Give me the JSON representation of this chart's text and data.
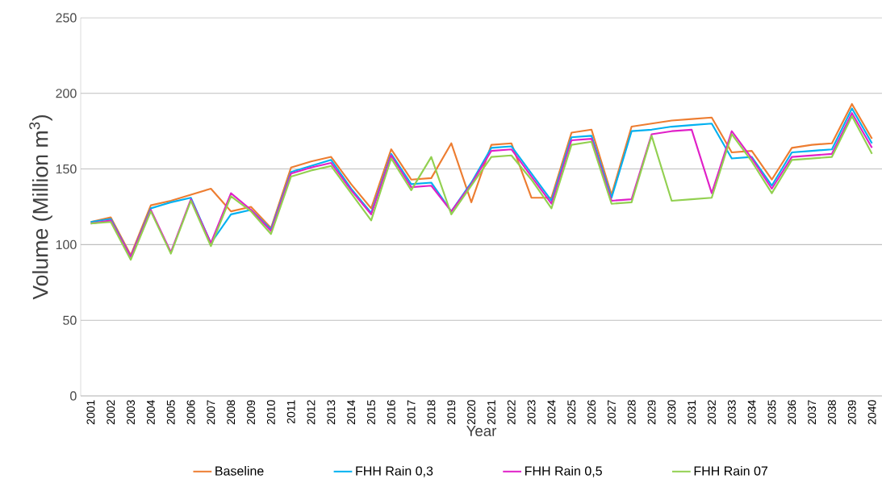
{
  "chart_data": {
    "type": "line",
    "xlabel": "Year",
    "ylabel": "Volume (Million m$^{3}$)",
    "categories": [
      "2001",
      "2002",
      "2003",
      "2004",
      "2005",
      "2006",
      "2007",
      "2008",
      "2009",
      "2010",
      "2011",
      "2012",
      "2013",
      "2014",
      "2015",
      "2016",
      "2017",
      "2018",
      "2019",
      "2020",
      "2021",
      "2022",
      "2023",
      "2024",
      "2025",
      "2026",
      "2027",
      "2028",
      "2029",
      "2030",
      "2031",
      "2032",
      "2033",
      "2034",
      "2035",
      "2036",
      "2037",
      "2038",
      "2039",
      "2040"
    ],
    "series": [
      {
        "name": "Baseline",
        "color": "#ed7d31",
        "values": [
          115,
          118,
          93,
          126,
          129,
          133,
          137,
          122,
          125,
          111,
          151,
          155,
          158,
          140,
          124,
          163,
          143,
          144,
          167,
          128,
          166,
          167,
          131,
          131,
          174,
          176,
          133,
          178,
          180,
          182,
          183,
          184,
          161,
          162,
          143,
          164,
          166,
          167,
          193,
          170
        ]
      },
      {
        "name": "FHH Rain 0,3",
        "color": "#00b0f0",
        "values": [
          115,
          117,
          92,
          124,
          128,
          131,
          101,
          120,
          123,
          110,
          148,
          152,
          156,
          137,
          121,
          160,
          140,
          141,
          122,
          141,
          164,
          165,
          147,
          129,
          171,
          172,
          131,
          175,
          176,
          178,
          179,
          180,
          157,
          158,
          139,
          161,
          162,
          163,
          190,
          167
        ]
      },
      {
        "name": "FHH Rain 0,5",
        "color": "#e020c8",
        "values": [
          114,
          116,
          92,
          123,
          95,
          130,
          101,
          134,
          123,
          109,
          147,
          151,
          154,
          136,
          120,
          159,
          138,
          139,
          122,
          140,
          162,
          163,
          145,
          127,
          169,
          170,
          129,
          130,
          173,
          175,
          176,
          134,
          175,
          157,
          137,
          158,
          159,
          160,
          187,
          164
        ]
      },
      {
        "name": "FHH Rain 07",
        "color": "#92d050",
        "values": [
          114,
          115,
          90,
          122,
          94,
          129,
          99,
          132,
          122,
          107,
          145,
          149,
          152,
          134,
          116,
          157,
          136,
          158,
          120,
          139,
          158,
          159,
          143,
          124,
          166,
          168,
          127,
          128,
          172,
          129,
          130,
          131,
          173,
          155,
          134,
          156,
          157,
          158,
          185,
          160
        ]
      }
    ],
    "ylim": [
      0,
      250
    ],
    "yticks": [
      0,
      50,
      100,
      150,
      200,
      250
    ],
    "grid": "y",
    "legend": "bottom"
  }
}
